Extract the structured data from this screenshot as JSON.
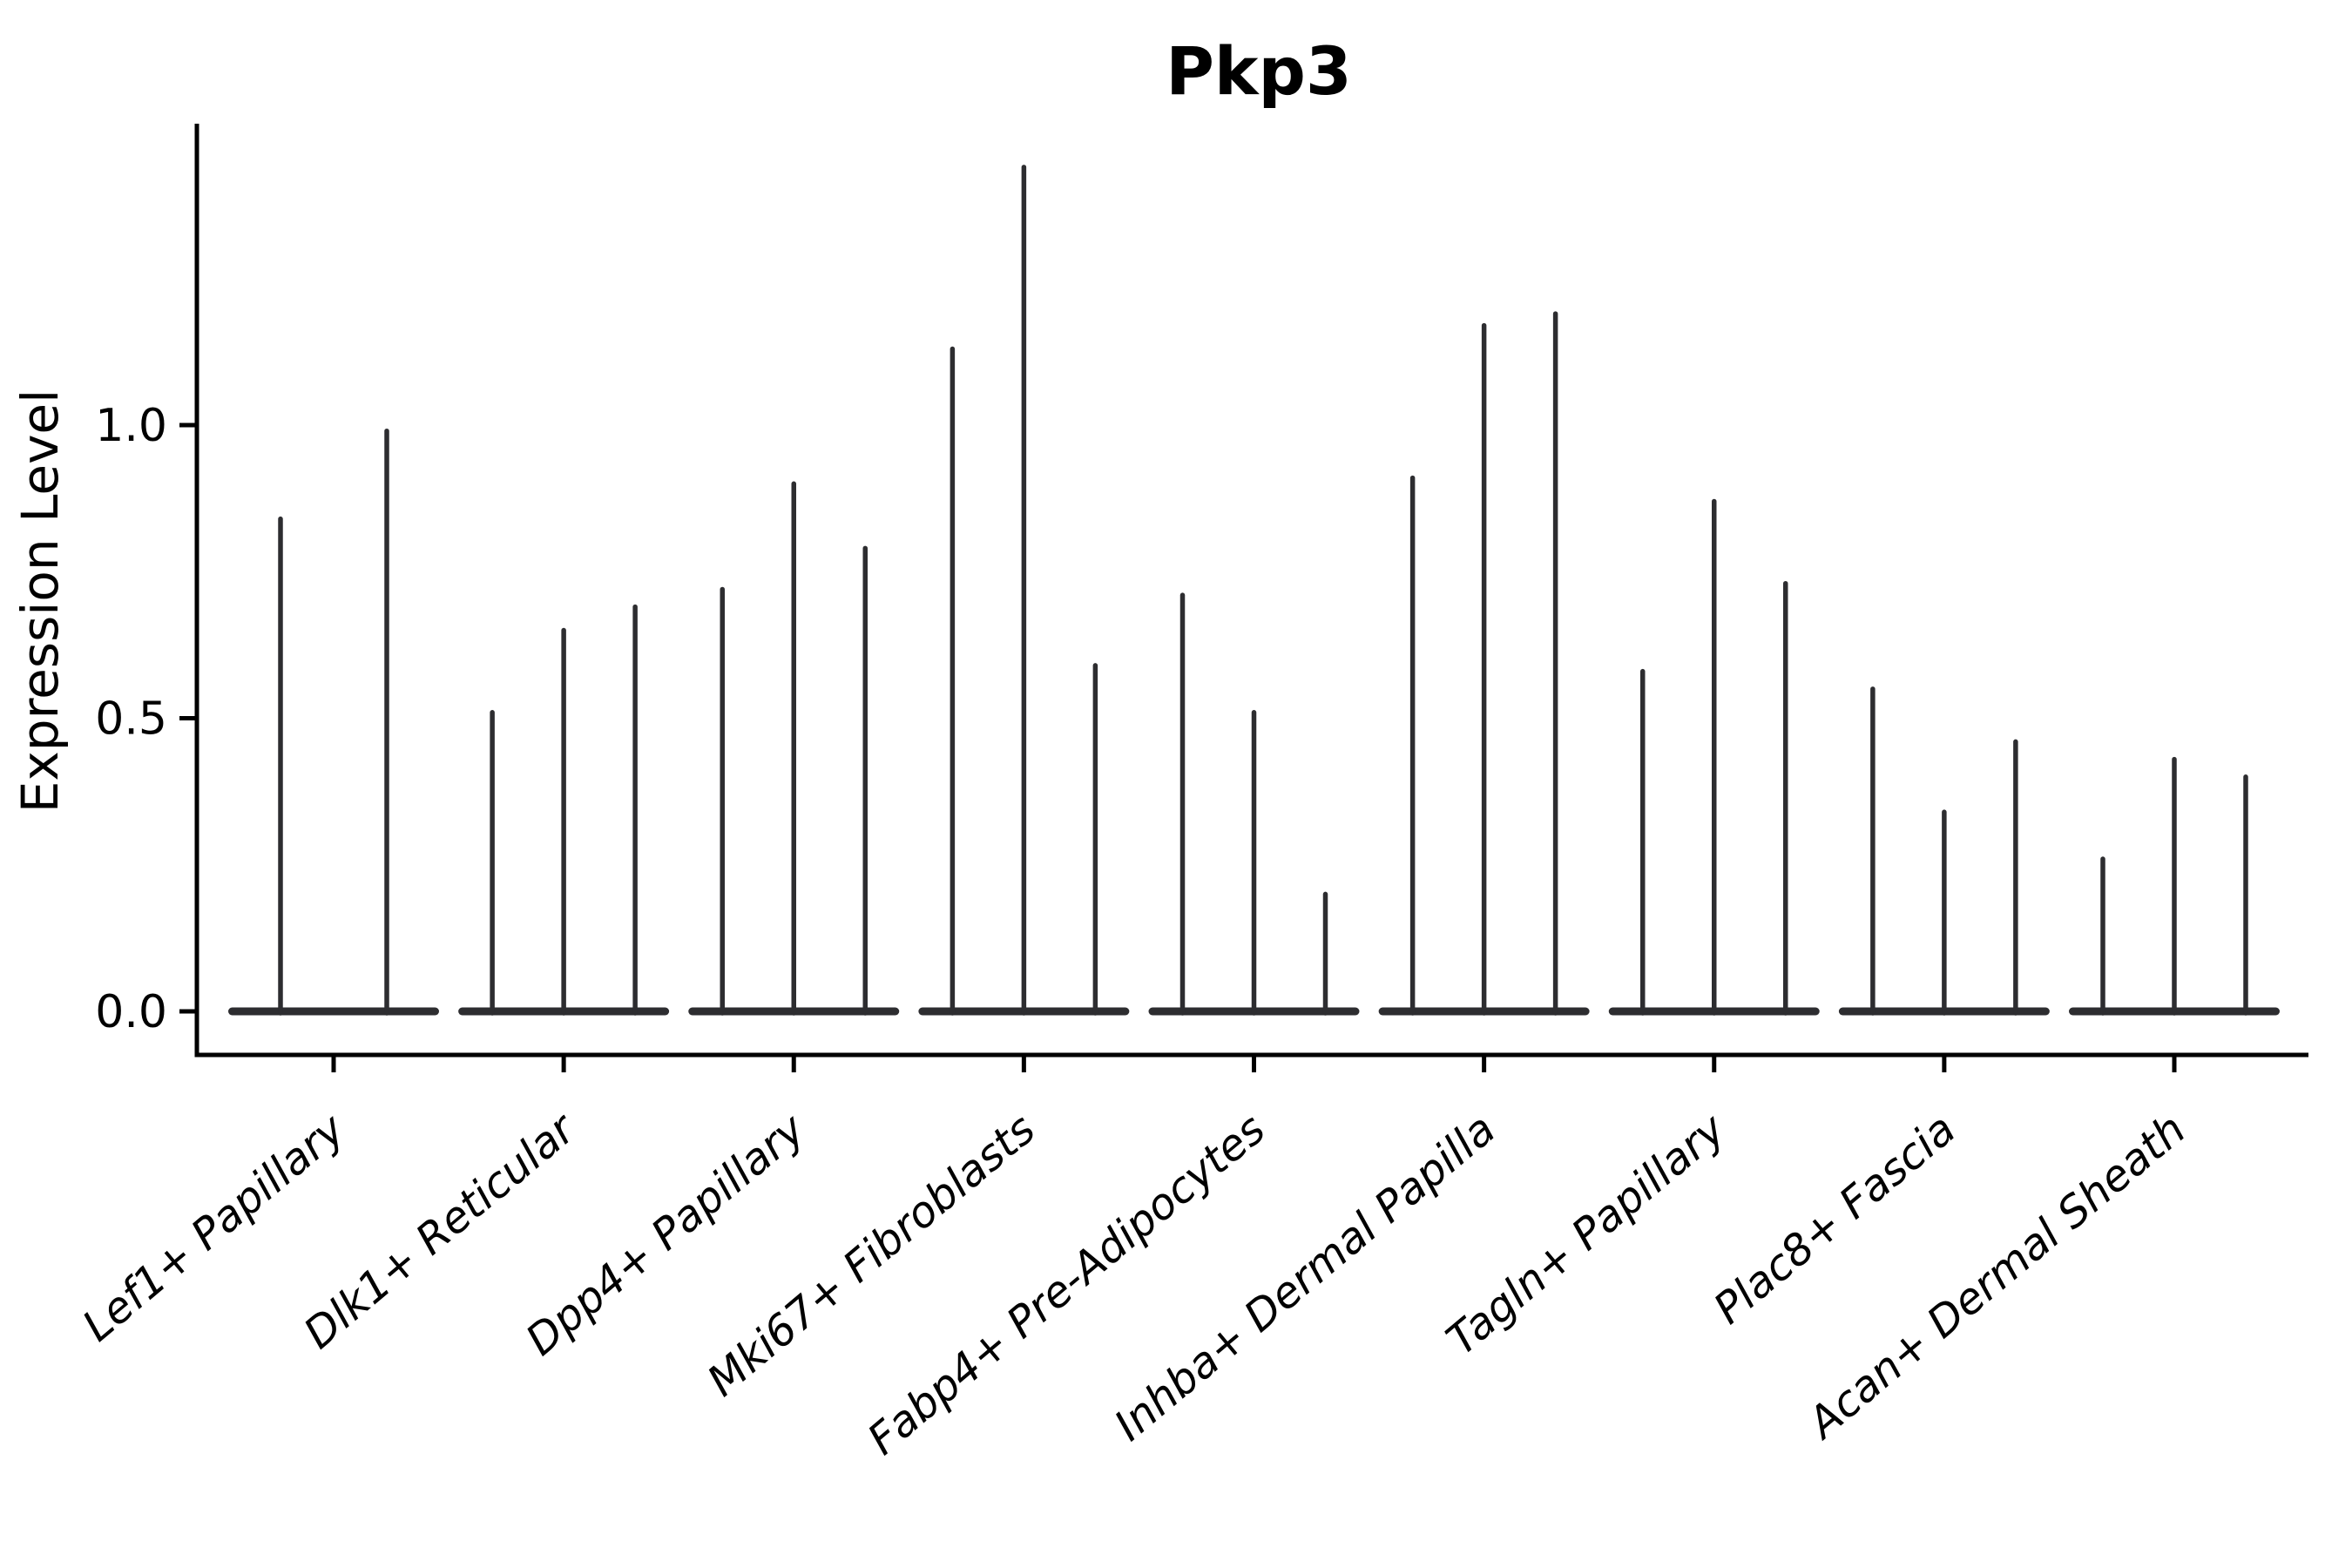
{
  "figure": {
    "background": "#ffffff"
  },
  "chart_data": {
    "type": "violin",
    "title": "Pkp3",
    "xlabel": "",
    "ylabel": "Expression Level",
    "ytick_labels": [
      "0.0",
      "0.5",
      "1.0"
    ],
    "ytick_values": [
      0.0,
      0.5,
      1.0
    ],
    "ylim": [
      -0.075,
      1.51
    ],
    "grid": false,
    "legend_position": "none",
    "violin_style": "density collapsed at zero with a wide flat base and a thin vertical spike reaching each violin's maximum expression value",
    "colors": {
      "violin": "#2d2d30",
      "axis": "#000000",
      "text": "#000000"
    },
    "categories": [
      {
        "label": "Lef1+ Papillary",
        "violin_peaks": [
          0.84,
          0.99
        ]
      },
      {
        "label": "Dlk1+ Reticular",
        "violin_peaks": [
          0.51,
          0.65,
          0.69
        ]
      },
      {
        "label": "Dpp4+ Papillary",
        "violin_peaks": [
          0.72,
          0.9,
          0.79
        ]
      },
      {
        "label": "Mki67+ Fibroblasts",
        "violin_peaks": [
          1.13,
          1.44,
          0.59
        ]
      },
      {
        "label": "Fabp4+ Pre-Adipocytes",
        "violin_peaks": [
          0.71,
          0.51,
          0.2
        ]
      },
      {
        "label": "Inhba+ Dermal Papilla",
        "violin_peaks": [
          0.91,
          1.17,
          1.19
        ]
      },
      {
        "label": "Tagln+ Papillary",
        "violin_peaks": [
          0.58,
          0.87,
          0.73
        ]
      },
      {
        "label": "Plac8+ Fascia",
        "violin_peaks": [
          0.55,
          0.34,
          0.46
        ]
      },
      {
        "label": "Acan+ Dermal Sheath",
        "violin_peaks": [
          0.26,
          0.43,
          0.4
        ]
      }
    ]
  }
}
